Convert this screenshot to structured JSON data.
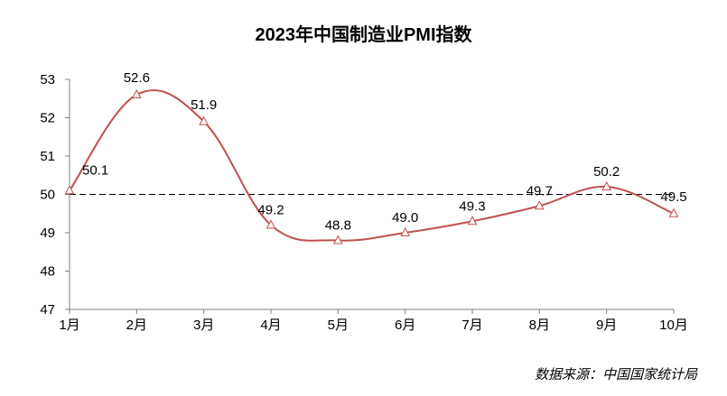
{
  "chart_data": {
    "type": "line",
    "title": "2023年中国制造业PMI指数",
    "categories": [
      "1月",
      "2月",
      "3月",
      "4月",
      "5月",
      "6月",
      "7月",
      "8月",
      "9月",
      "10月"
    ],
    "series": [
      {
        "values": [
          50.1,
          52.6,
          51.9,
          49.2,
          48.8,
          49.0,
          49.3,
          49.7,
          50.2,
          49.5
        ],
        "labels": [
          "50.1",
          "52.6",
          "51.9",
          "49.2",
          "48.8",
          "49.0",
          "49.3",
          "49.7",
          "50.2",
          "49.5"
        ],
        "color": "#c0504d",
        "marker": "triangle",
        "smooth": true
      }
    ],
    "yticks": [
      "47",
      "48",
      "49",
      "50",
      "51",
      "52",
      "53"
    ],
    "ylim": [
      47,
      53
    ],
    "reference_line": {
      "y": 50,
      "style": "dashed",
      "color": "#000000"
    },
    "grid": false,
    "xlabel": "",
    "ylabel": ""
  },
  "source_note": "数据来源：中国国家统计局"
}
